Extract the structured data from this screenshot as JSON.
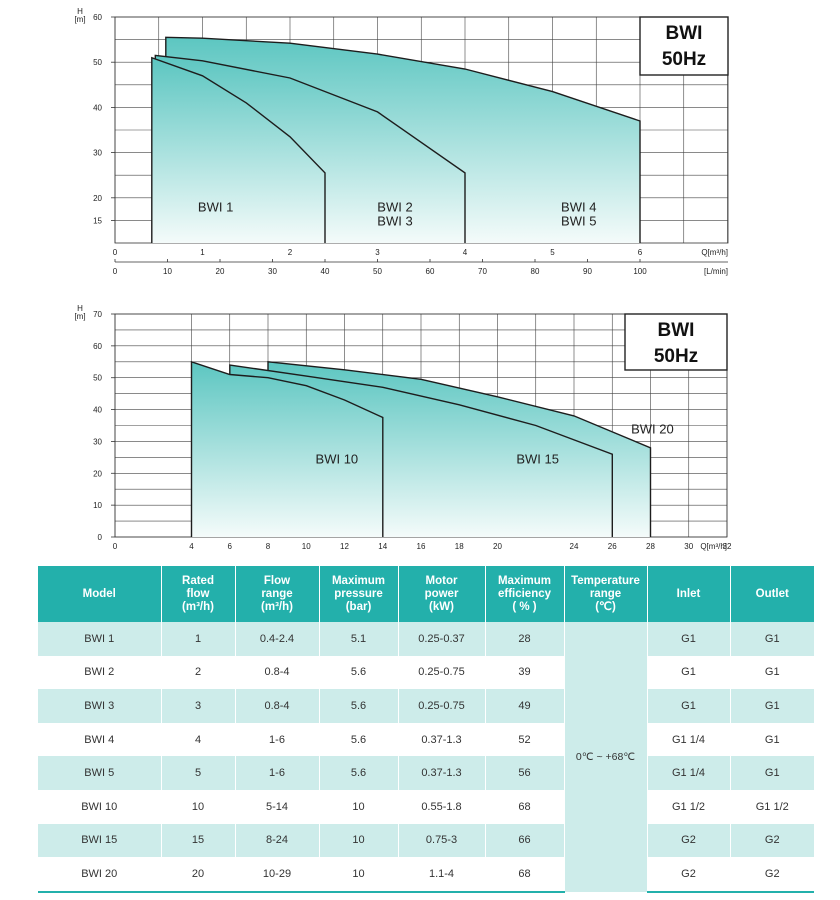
{
  "chart_data": [
    {
      "type": "area",
      "title": "",
      "badge": [
        "BWI",
        "50Hz"
      ],
      "ylabel": "H",
      "yunit": "[m]",
      "xlabel": "Q[m³/h]",
      "x2label": "[L/min]",
      "ylim": [
        0,
        60
      ],
      "yticks": [
        15,
        20,
        30,
        40,
        50,
        60
      ],
      "xlim": [
        0,
        6
      ],
      "xticks": [
        0,
        1,
        2,
        3,
        4,
        5,
        6
      ],
      "x2ticks": [
        0,
        10,
        20,
        30,
        40,
        50,
        60,
        70,
        80,
        90,
        100
      ],
      "grid": true,
      "series": [
        {
          "name": "BWI 4 BWI 5",
          "x": [
            0.58,
            1.0,
            2.0,
            3.0,
            4.0,
            5.0,
            6.0
          ],
          "y": [
            55.5,
            55.3,
            54.2,
            51.8,
            48.5,
            43.5,
            37.0
          ]
        },
        {
          "name": "BWI 2 BWI 3",
          "x": [
            0.46,
            1.0,
            2.0,
            3.0,
            4.0
          ],
          "y": [
            51.5,
            50.3,
            46.5,
            39.0,
            25.5
          ]
        },
        {
          "name": "BWI 1",
          "x": [
            0.42,
            1.0,
            1.5,
            2.0,
            2.4
          ],
          "y": [
            51.0,
            47.0,
            41.0,
            33.5,
            25.5
          ]
        }
      ],
      "labels": [
        {
          "lines": [
            "BWI 1"
          ],
          "x": 1.15,
          "y": 17
        },
        {
          "lines": [
            "BWI 2",
            "BWI 3"
          ],
          "x": 3.2,
          "y": 17
        },
        {
          "lines": [
            "BWI 4",
            "BWI 5"
          ],
          "x": 5.3,
          "y": 17
        }
      ]
    },
    {
      "type": "area",
      "title": "",
      "badge": [
        "BWI",
        "50Hz"
      ],
      "ylabel": "H",
      "yunit": "[m]",
      "xlabel": "Q[m³/h]",
      "ylim": [
        0,
        70
      ],
      "yticks": [
        0,
        10,
        20,
        30,
        40,
        50,
        60,
        70
      ],
      "xlim": [
        0,
        32
      ],
      "xticks": [
        0,
        4,
        6,
        8,
        10,
        12,
        14,
        16,
        18,
        20,
        24,
        26,
        28,
        30,
        32
      ],
      "grid": true,
      "series": [
        {
          "name": "BWI 20",
          "x": [
            8,
            12,
            16,
            20,
            24,
            28
          ],
          "y": [
            55,
            52.5,
            49.5,
            44,
            38,
            28
          ]
        },
        {
          "name": "BWI 15",
          "x": [
            6,
            10,
            14,
            18,
            22,
            26
          ],
          "y": [
            54,
            50.5,
            47,
            41.5,
            35,
            26
          ]
        },
        {
          "name": "BWI 10",
          "x": [
            4,
            6,
            8,
            10,
            12,
            14
          ],
          "y": [
            55,
            51,
            50,
            47.5,
            43,
            37.5
          ]
        }
      ],
      "labels": [
        {
          "lines": [
            "BWI 10"
          ],
          "x": 11.6,
          "y": 23
        },
        {
          "lines": [
            "BWI 15"
          ],
          "x": 22.1,
          "y": 23
        },
        {
          "lines": [
            "BWI 20"
          ],
          "x": 28.1,
          "y": 32.5
        }
      ]
    }
  ],
  "table": {
    "headers": [
      [
        "Model"
      ],
      [
        "Rated",
        "flow",
        "(m³/h)"
      ],
      [
        "Flow",
        "range",
        "(m³/h)"
      ],
      [
        "Maximum",
        "pressure",
        "(bar)"
      ],
      [
        "Motor",
        "power",
        "(kW)"
      ],
      [
        "Maximum",
        "efficiency",
        "( % )"
      ],
      [
        "Temperature",
        "range",
        "(℃)"
      ],
      [
        "Inlet"
      ],
      [
        "Outlet"
      ]
    ],
    "temperature": "0℃ ~ +68℃",
    "rows": [
      {
        "model": "BWI 1",
        "rated": "1",
        "range": "0.4-2.4",
        "pressure": "5.1",
        "power": "0.25-0.37",
        "eff": "28",
        "inlet": "G1",
        "outlet": "G1"
      },
      {
        "model": "BWI 2",
        "rated": "2",
        "range": "0.8-4",
        "pressure": "5.6",
        "power": "0.25-0.75",
        "eff": "39",
        "inlet": "G1",
        "outlet": "G1"
      },
      {
        "model": "BWI 3",
        "rated": "3",
        "range": "0.8-4",
        "pressure": "5.6",
        "power": "0.25-0.75",
        "eff": "49",
        "inlet": "G1",
        "outlet": "G1"
      },
      {
        "model": "BWI 4",
        "rated": "4",
        "range": "1-6",
        "pressure": "5.6",
        "power": "0.37-1.3",
        "eff": "52",
        "inlet": "G1 1/4",
        "outlet": "G1"
      },
      {
        "model": "BWI 5",
        "rated": "5",
        "range": "1-6",
        "pressure": "5.6",
        "power": "0.37-1.3",
        "eff": "56",
        "inlet": "G1 1/4",
        "outlet": "G1"
      },
      {
        "model": "BWI 10",
        "rated": "10",
        "range": "5-14",
        "pressure": "10",
        "power": "0.55-1.8",
        "eff": "68",
        "inlet": "G1 1/2",
        "outlet": "G1 1/2"
      },
      {
        "model": "BWI 15",
        "rated": "15",
        "range": "8-24",
        "pressure": "10",
        "power": "0.75-3",
        "eff": "66",
        "inlet": "G2",
        "outlet": "G2"
      },
      {
        "model": "BWI 20",
        "rated": "20",
        "range": "10-29",
        "pressure": "10",
        "power": "1.1-4",
        "eff": "68",
        "inlet": "G2",
        "outlet": "G2"
      }
    ]
  },
  "colors": {
    "accent": "#23b0ab",
    "rowTint": "#cdecea",
    "fillTop": "#5cc6c1",
    "fillBottom": "#f4fbfa"
  }
}
